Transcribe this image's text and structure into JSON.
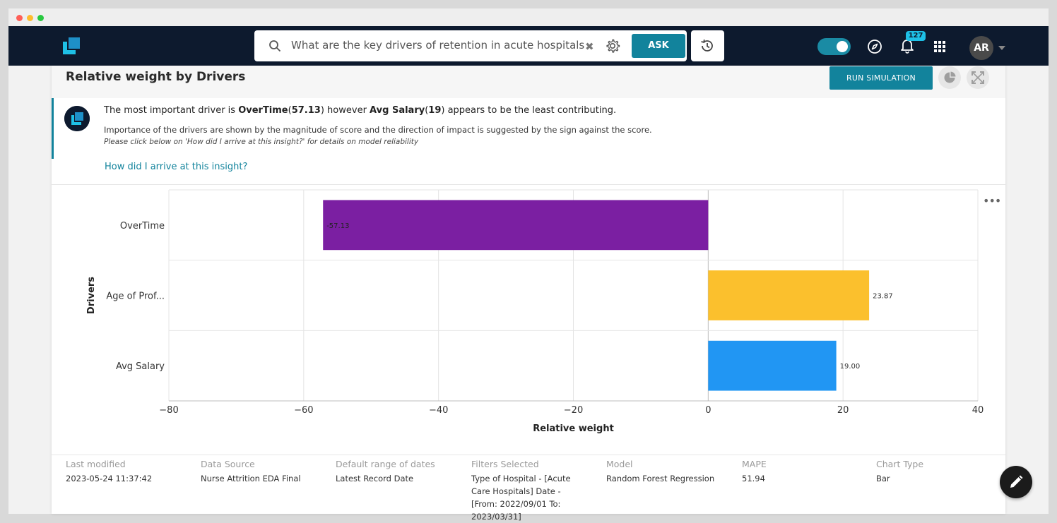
{
  "search": {
    "query": "What are the key drivers of retention in acute hospitals",
    "ask_label": "ASK"
  },
  "nav": {
    "notification_count": "127",
    "avatar_initials": "AR"
  },
  "card": {
    "title": "Relative weight by Drivers",
    "run_simulation_label": "RUN SIMULATION"
  },
  "insight": {
    "prefix": "The most important driver is ",
    "top_driver": "OverTime",
    "top_value": "57.13",
    "middle": " however ",
    "least_driver": "Avg Salary",
    "least_value": "19",
    "suffix": " appears to be the least contributing.",
    "explanation": "Importance of the drivers are shown by the magnitude of score and the direction of impact is suggested by the sign against the score.",
    "note": "Please click below on 'How did I arrive at this insight?' for details on model reliability",
    "link": "How did I arrive at this insight?"
  },
  "chart_data": {
    "type": "bar",
    "orientation": "horizontal",
    "categories": [
      "OverTime",
      "Age of Prof...",
      "Avg Salary"
    ],
    "values": [
      -57.13,
      23.87,
      19.0
    ],
    "value_labels": [
      "-57.13",
      "23.87",
      "19.00"
    ],
    "colors": [
      "#7b1fa2",
      "#fbc02d",
      "#2196f3"
    ],
    "xlabel": "Relative weight",
    "ylabel": "Drivers",
    "xlim": [
      -80,
      40
    ],
    "xticks": [
      -80,
      -60,
      -40,
      -20,
      0,
      20,
      40
    ],
    "xtick_labels": [
      "−80",
      "−60",
      "−40",
      "−20",
      "0",
      "20",
      "40"
    ],
    "grid": true
  },
  "meta": [
    {
      "label": "Last modified",
      "value": "2023-05-24 11:37:42"
    },
    {
      "label": "Data Source",
      "value": "Nurse Attrition EDA Final"
    },
    {
      "label": "Default range of dates",
      "value": "Latest Record Date"
    },
    {
      "label": "Filters Selected",
      "value": "Type of Hospital - [Acute Care Hospitals] Date - [From: 2022/09/01 To: 2023/03/31]"
    },
    {
      "label": "Model",
      "value": "Random Forest Regression"
    },
    {
      "label": "MAPE",
      "value": "51.94"
    },
    {
      "label": "Chart Type",
      "value": "Bar"
    }
  ],
  "colors": {
    "nav_bg": "#0d1a2e",
    "accent": "#12839c",
    "badge": "#1ec0e6"
  }
}
